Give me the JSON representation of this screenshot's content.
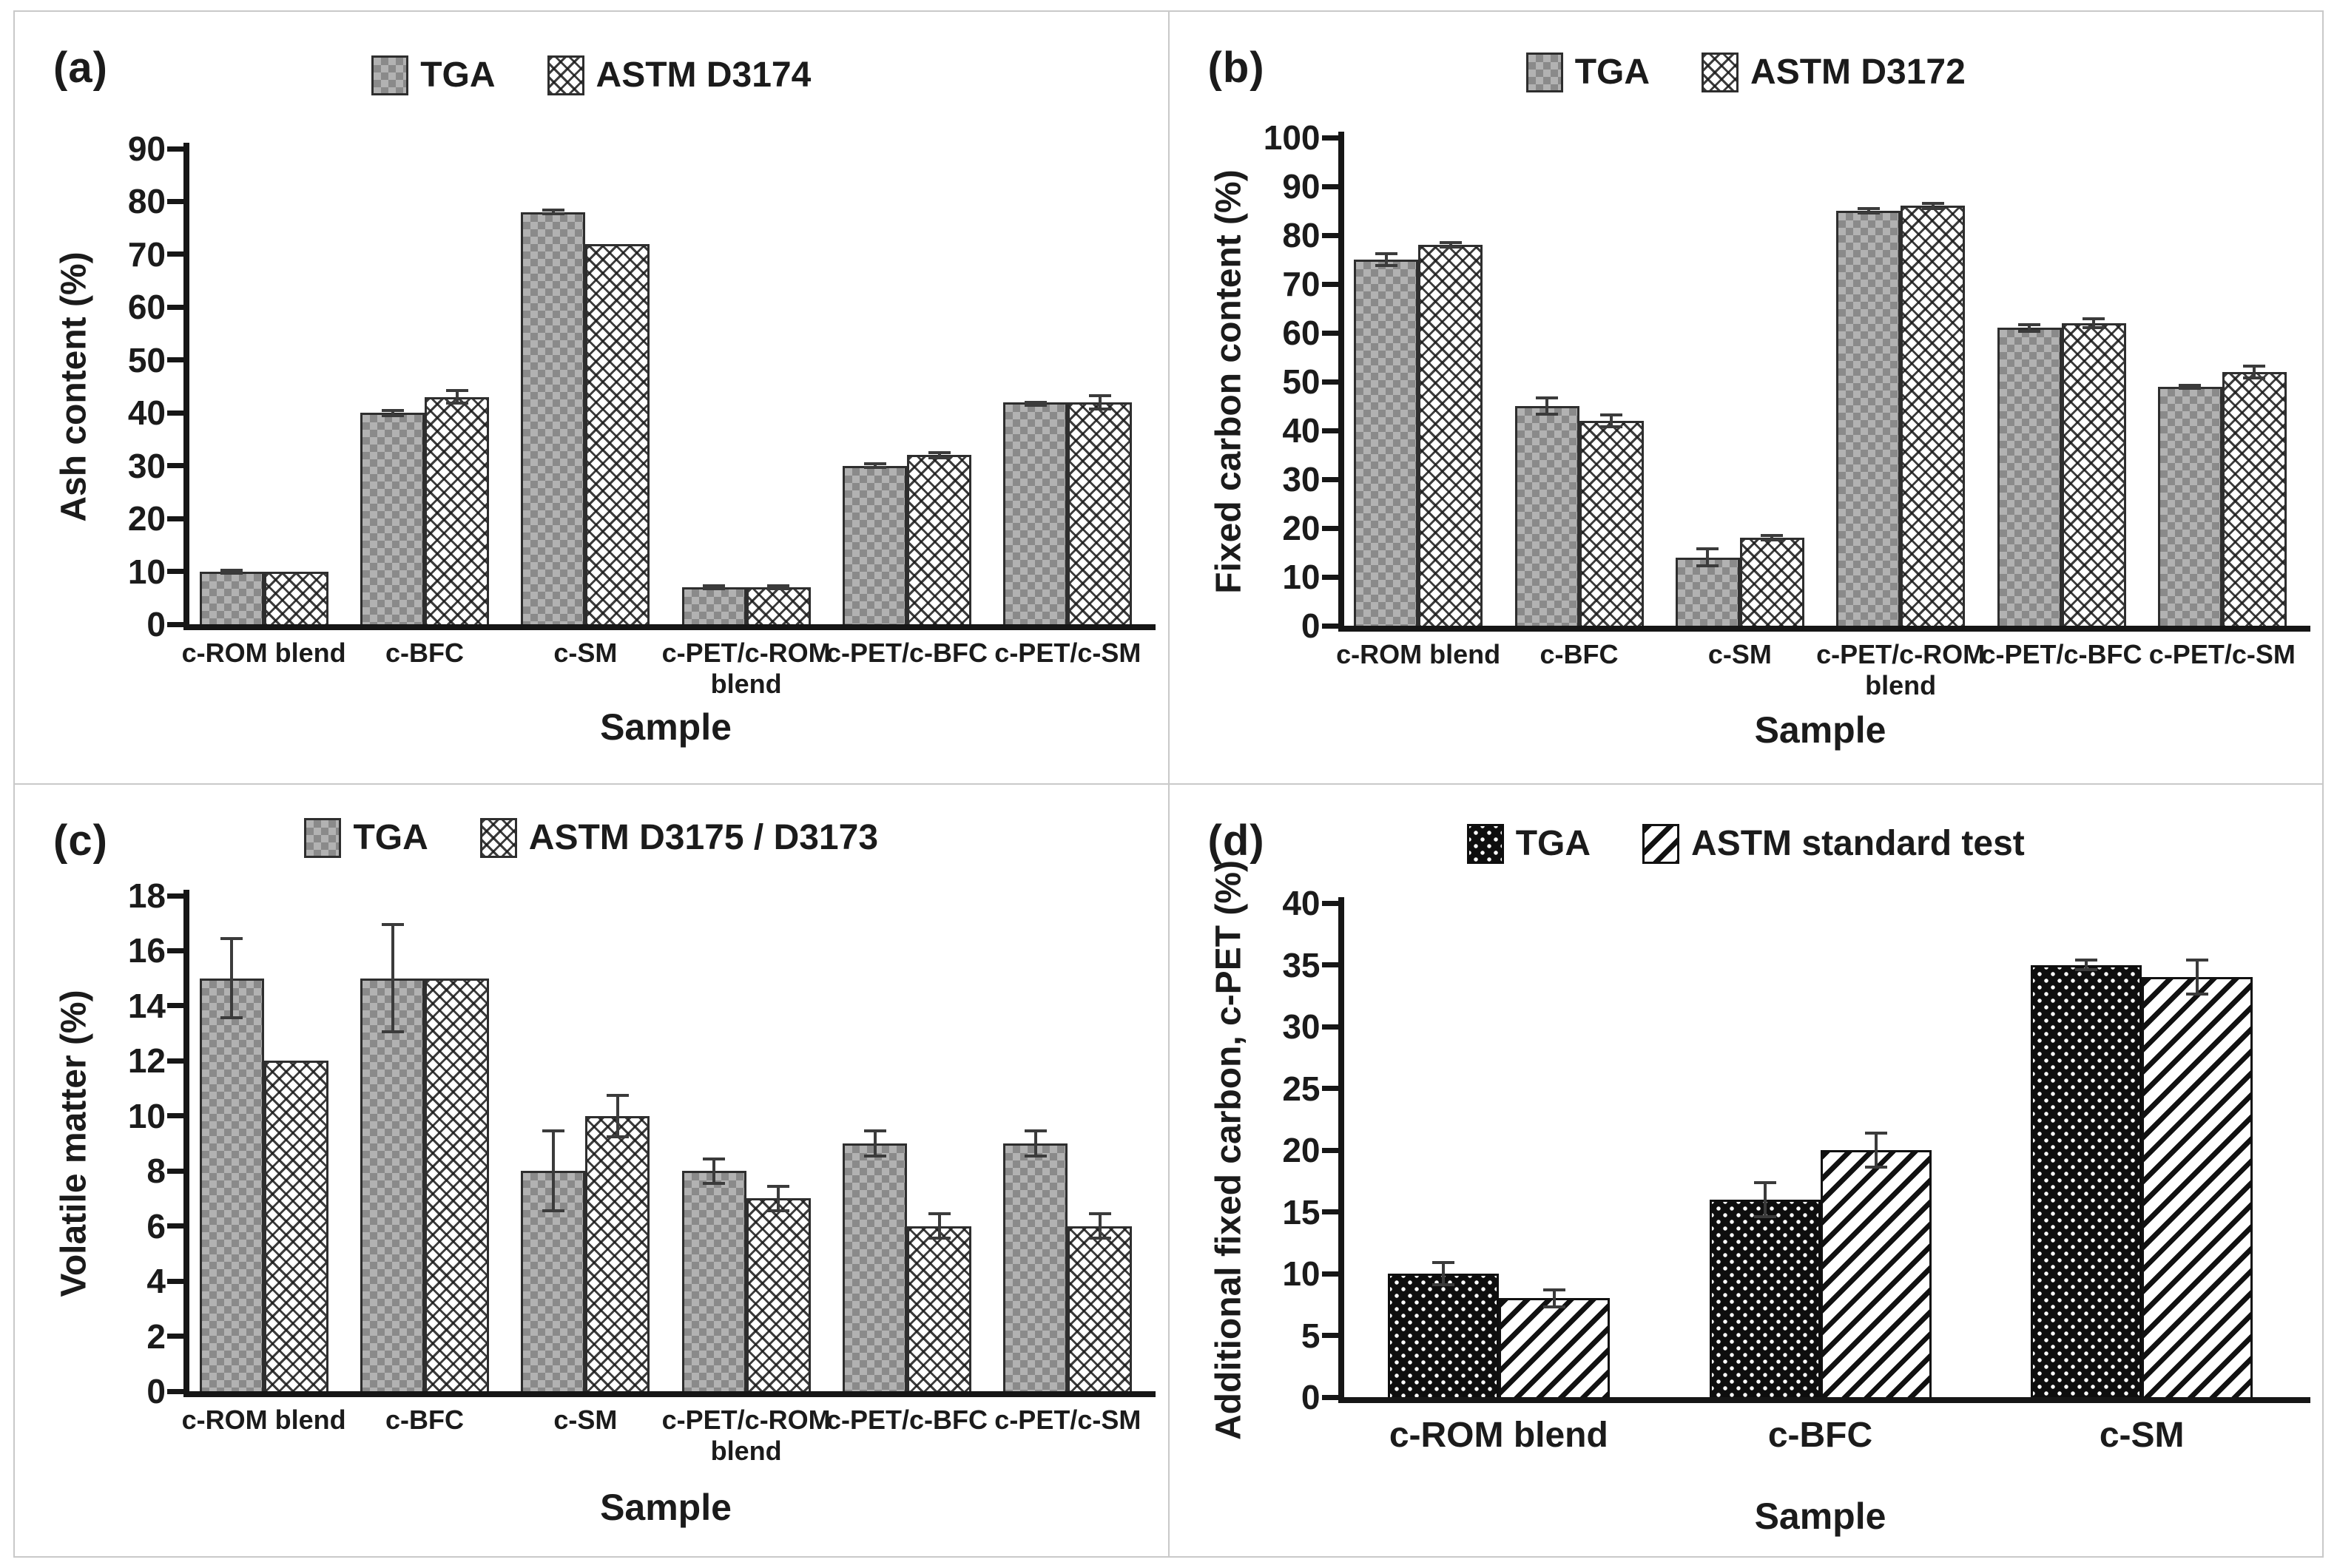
{
  "chart_data": [
    {
      "id": "a",
      "panel_label": "(a)",
      "type": "bar",
      "title": "",
      "xlabel": "Sample",
      "ylabel": "Ash content (%)",
      "ylim": [
        0,
        90
      ],
      "yticks": [
        90,
        80,
        70,
        60,
        50,
        40,
        30,
        20,
        10,
        0
      ],
      "grid": false,
      "legend_position": "top-center",
      "categories": [
        "c-ROM blend",
        "c-BFC",
        "c-SM",
        "c-PET/c-ROM blend",
        "c-PET/c-BFC",
        "c-PET/c-SM"
      ],
      "series": [
        {
          "name": "TGA",
          "pattern": "gray-check",
          "values": [
            10,
            40,
            78,
            7,
            30,
            42
          ],
          "errors": [
            0.5,
            0.8,
            0.6,
            0.5,
            0.6,
            0.3
          ]
        },
        {
          "name": "ASTM D3174",
          "pattern": "diag-crosshatch",
          "values": [
            10,
            43,
            72,
            7,
            32,
            42
          ],
          "errors": [
            0,
            1.5,
            0,
            0.5,
            0.8,
            1.5
          ]
        }
      ]
    },
    {
      "id": "b",
      "panel_label": "(b)",
      "type": "bar",
      "title": "",
      "xlabel": "Sample",
      "ylabel": "Fixed carbon content (%)",
      "ylim": [
        0,
        100
      ],
      "yticks": [
        100,
        90,
        80,
        70,
        60,
        50,
        40,
        30,
        20,
        10,
        0
      ],
      "grid": false,
      "legend_position": "top-center",
      "categories": [
        "c-ROM blend",
        "c-BFC",
        "c-SM",
        "c-PET/c-ROM blend",
        "c-PET/c-BFC",
        "c-PET/c-SM"
      ],
      "series": [
        {
          "name": "TGA",
          "pattern": "gray-check",
          "values": [
            75,
            45,
            14,
            85,
            61,
            49
          ],
          "errors": [
            1.5,
            2,
            2,
            0.8,
            1,
            0.5
          ]
        },
        {
          "name": "ASTM D3172",
          "pattern": "diag-crosshatch",
          "values": [
            78,
            42,
            18,
            86,
            62,
            52
          ],
          "errors": [
            0.8,
            1.5,
            0.8,
            0.8,
            1.2,
            1.5
          ]
        }
      ]
    },
    {
      "id": "c",
      "panel_label": "(c)",
      "type": "bar",
      "title": "",
      "xlabel": "Sample",
      "ylabel": "Volatile matter (%)",
      "ylim": [
        0,
        18
      ],
      "yticks": [
        18,
        16,
        14,
        12,
        10,
        8,
        6,
        4,
        2,
        0
      ],
      "grid": false,
      "legend_position": "top-center",
      "categories": [
        "c-ROM blend",
        "c-BFC",
        "c-SM",
        "c-PET/c-ROM blend",
        "c-PET/c-BFC",
        "c-PET/c-SM"
      ],
      "series": [
        {
          "name": "TGA",
          "pattern": "gray-check",
          "values": [
            15,
            15,
            8,
            8,
            9,
            9
          ],
          "errors": [
            1.5,
            2,
            1.5,
            0.5,
            0.5,
            0.5
          ]
        },
        {
          "name": "ASTM D3175 / D3173",
          "pattern": "diag-crosshatch",
          "values": [
            12,
            15,
            10,
            7,
            6,
            6
          ],
          "errors": [
            0,
            0,
            0.8,
            0.5,
            0.5,
            0.5
          ]
        }
      ]
    },
    {
      "id": "d",
      "panel_label": "(d)",
      "type": "bar",
      "title": "",
      "xlabel": "Sample",
      "ylabel": "Additional fixed carbon, c-PET (%)",
      "ylim": [
        0,
        40
      ],
      "yticks": [
        40,
        35,
        30,
        25,
        20,
        15,
        10,
        5,
        0
      ],
      "grid": false,
      "legend_position": "top-center",
      "categories": [
        "c-ROM blend",
        "c-BFC",
        "c-SM"
      ],
      "series": [
        {
          "name": "TGA",
          "pattern": "black-dots",
          "values": [
            10,
            16,
            35
          ],
          "errors": [
            1,
            1.5,
            0.5
          ]
        },
        {
          "name": "ASTM standard test",
          "pattern": "diag-stripes",
          "values": [
            8,
            20,
            34
          ],
          "errors": [
            0.8,
            1.5,
            1.5
          ]
        }
      ]
    }
  ]
}
